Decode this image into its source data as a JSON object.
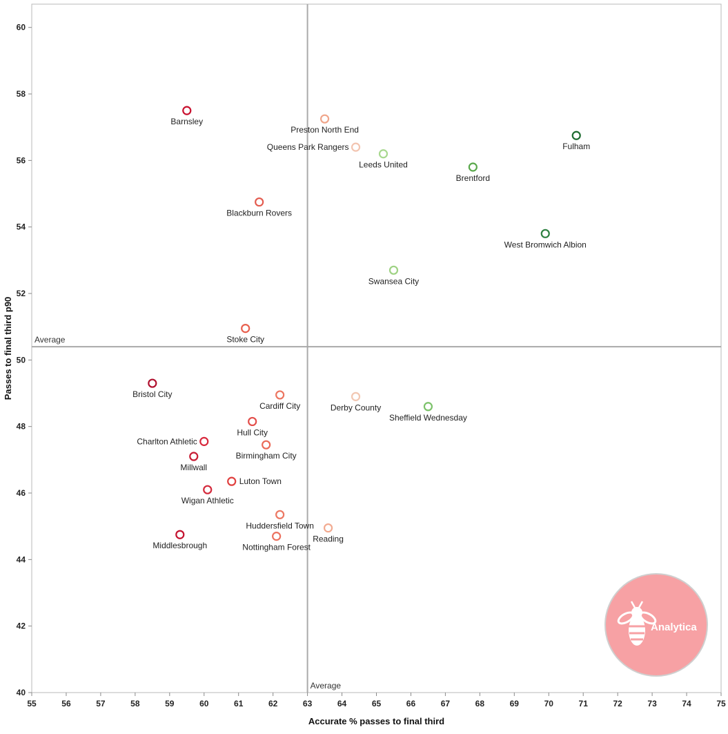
{
  "chart_data": {
    "type": "scatter",
    "xlabel": "Accurate % passes to final third",
    "ylabel": "Passes to final third p90",
    "xlim": [
      55,
      75
    ],
    "ylim": [
      40,
      60.7
    ],
    "x_ticks": [
      55,
      56,
      57,
      58,
      59,
      60,
      61,
      62,
      63,
      64,
      65,
      66,
      67,
      68,
      69,
      70,
      71,
      72,
      73,
      74,
      75
    ],
    "y_ticks": [
      40,
      42,
      44,
      46,
      48,
      50,
      52,
      54,
      56,
      58,
      60
    ],
    "grid": false,
    "reference_lines": {
      "x_average": 63.0,
      "y_average": 50.4,
      "x_label": "Average",
      "y_label": "Average"
    },
    "points": [
      {
        "team": "Barnsley",
        "x": 59.5,
        "y": 57.5,
        "color": "#c8102e",
        "label_pos": "below"
      },
      {
        "team": "Preston North End",
        "x": 63.5,
        "y": 57.25,
        "color": "#f0a58a",
        "label_pos": "below"
      },
      {
        "team": "Queens Park Rangers",
        "x": 64.4,
        "y": 56.4,
        "color": "#f2c4b0",
        "label_pos": "left"
      },
      {
        "team": "Leeds United",
        "x": 65.2,
        "y": 56.2,
        "color": "#a8d88f",
        "label_pos": "below"
      },
      {
        "team": "Fulham",
        "x": 70.8,
        "y": 56.75,
        "color": "#1e6b30",
        "label_pos": "below"
      },
      {
        "team": "Brentford",
        "x": 67.8,
        "y": 55.8,
        "color": "#5aa84c",
        "label_pos": "below"
      },
      {
        "team": "Blackburn Rovers",
        "x": 61.6,
        "y": 54.75,
        "color": "#e35b4f",
        "label_pos": "below"
      },
      {
        "team": "West Bromwich Albion",
        "x": 69.9,
        "y": 53.8,
        "color": "#2d8040",
        "label_pos": "below"
      },
      {
        "team": "Swansea City",
        "x": 65.5,
        "y": 52.7,
        "color": "#9ed283",
        "label_pos": "below"
      },
      {
        "team": "Stoke City",
        "x": 61.2,
        "y": 50.95,
        "color": "#e8604e",
        "label_pos": "below"
      },
      {
        "team": "Bristol City",
        "x": 58.5,
        "y": 49.3,
        "color": "#b0102e",
        "label_pos": "below"
      },
      {
        "team": "Cardiff City",
        "x": 62.2,
        "y": 48.95,
        "color": "#ec7560",
        "label_pos": "below"
      },
      {
        "team": "Derby County",
        "x": 64.4,
        "y": 48.9,
        "color": "#f2c7b2",
        "label_pos": "below"
      },
      {
        "team": "Sheffield Wednesday",
        "x": 66.5,
        "y": 48.6,
        "color": "#7cc26a",
        "label_pos": "below"
      },
      {
        "team": "Hull City",
        "x": 61.4,
        "y": 48.15,
        "color": "#e34e4a",
        "label_pos": "below"
      },
      {
        "team": "Charlton Athletic",
        "x": 60.0,
        "y": 47.55,
        "color": "#d8283c",
        "label_pos": "left"
      },
      {
        "team": "Birmingham City",
        "x": 61.8,
        "y": 47.45,
        "color": "#ea6a58",
        "label_pos": "below"
      },
      {
        "team": "Millwall",
        "x": 59.7,
        "y": 47.1,
        "color": "#c81c34",
        "label_pos": "below"
      },
      {
        "team": "Luton Town",
        "x": 60.8,
        "y": 46.35,
        "color": "#e0403f",
        "label_pos": "right"
      },
      {
        "team": "Wigan Athletic",
        "x": 60.1,
        "y": 46.1,
        "color": "#d42a3c",
        "label_pos": "below"
      },
      {
        "team": "Huddersfield Town",
        "x": 62.2,
        "y": 45.35,
        "color": "#ec7863",
        "label_pos": "below"
      },
      {
        "team": "Reading",
        "x": 63.6,
        "y": 44.95,
        "color": "#f2aa90",
        "label_pos": "below"
      },
      {
        "team": "Middlesbrough",
        "x": 59.3,
        "y": 44.75,
        "color": "#c4122f",
        "label_pos": "below"
      },
      {
        "team": "Nottingham Forest",
        "x": 62.1,
        "y": 44.7,
        "color": "#ec715e",
        "label_pos": "below"
      }
    ]
  },
  "logo": {
    "text": "Analytica",
    "icon": "bee-icon",
    "color": "#f7a1a4"
  }
}
